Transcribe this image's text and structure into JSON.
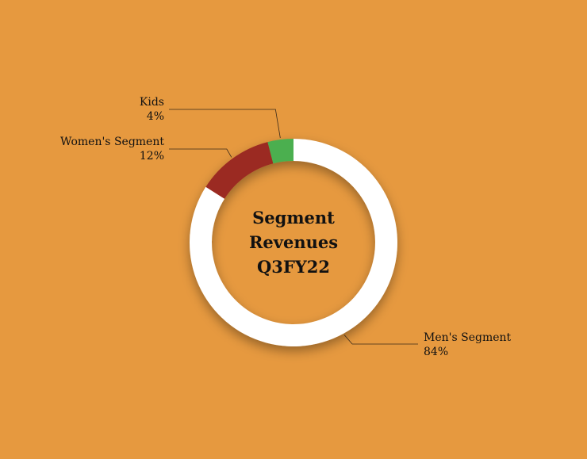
{
  "chart_data": {
    "type": "pie",
    "title_lines": [
      "Segment",
      "Revenues",
      "Q3FY22"
    ],
    "series": [
      {
        "name": "Men's Segment",
        "value": 84,
        "label": "84%",
        "color": "#FFFFFF"
      },
      {
        "name": "Women's Segment",
        "value": 12,
        "label": "12%",
        "color": "#9B2C23"
      },
      {
        "name": "Kids",
        "value": 4,
        "label": "4%",
        "color": "#4CAF50"
      }
    ],
    "background": "#E6993F",
    "legend": "none"
  }
}
